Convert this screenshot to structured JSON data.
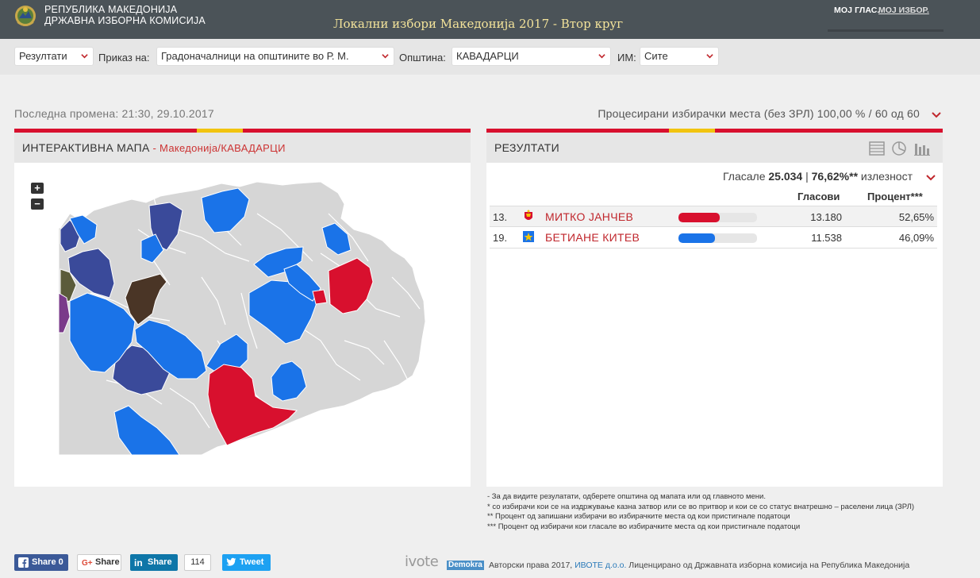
{
  "header": {
    "org_line1": "РЕПУБЛИКА МАКЕДОНИЈА",
    "org_line2": "ДРЖАВНА ИЗБОРНА КОМИСИЈА",
    "title": "Локални избори Македонија 2017 - Втор круг",
    "brand1": "МОЈ ГЛАС.",
    "brand2": "МОЈ ИЗБОР."
  },
  "filters": {
    "view_select": "Резултати",
    "show_label": "Приказ на:",
    "show_select": "Градоначалници на општините во Р. М.",
    "municipality_label": "Општина:",
    "municipality_select": "КАВАДАРЦИ",
    "im_label": "ИМ:",
    "im_select": "Сите"
  },
  "status": {
    "last_change": "Последна промена: 21:30, 29.10.2017",
    "processed": "Процесирани избирачки места (без ЗРЛ) 100,00 % / 60 од 60"
  },
  "map_panel": {
    "title": "ИНТЕРАКТИВНА МАПА",
    "subtitle": " - Македонија/КАВАДАРЦИ",
    "zoom_in": "+",
    "zoom_out": "−"
  },
  "results_panel": {
    "title": "РЕЗУЛТАТИ",
    "turnout_prefix": "Гласале ",
    "turnout_votes": "25.034",
    "turnout_sep": " | ",
    "turnout_pct": "76,62%**",
    "turnout_suffix": " излезност",
    "col_votes": "Гласови",
    "col_percent": "Процент***",
    "rows": [
      {
        "num": "13.",
        "name": "МИТКО ЈАНЧЕВ",
        "votes": "13.180",
        "percent": "52,65%",
        "share": 0.5265,
        "color": "#d8102e"
      },
      {
        "num": "19.",
        "name": "БЕТИАНЕ КИТЕВ",
        "votes": "11.538",
        "percent": "46,09%",
        "share": 0.4609,
        "color": "#1a73e8"
      }
    ]
  },
  "notes": [
    "- За да видите резулатати, одберете општина од мапата или од главното мени.",
    "* со избирачи кои се на издржување казна затвор или се во притвор и кои се со статус внатрешно – раселени лица (ЗРЛ)",
    "** Процент од запишани избирачи во избирачките места од кои пристигнале податоци",
    "*** Процент од избирачи кои гласале во избирачките места од кои пристигнале податоци"
  ],
  "footer": {
    "fb_share": "Share 0",
    "gplus_share": "Share",
    "li_share": "Share",
    "li_count": "114",
    "tweet": "Tweet",
    "ivote": "ivote",
    "demokra": "Demokra",
    "copyright_pre": "Авторски права 2017, ",
    "copyright_link": "ИВОТЕ д.о.о.",
    "copyright_post": " Лиценцирано од Државната изборна комисија на Република Македонија"
  },
  "colors": {
    "header_bg": "#4b5358",
    "title_color": "#f3e39a",
    "vmro_red": "#d8102e",
    "sdsm_blue": "#1a73e8",
    "dui_navy": "#3a4a9a"
  }
}
